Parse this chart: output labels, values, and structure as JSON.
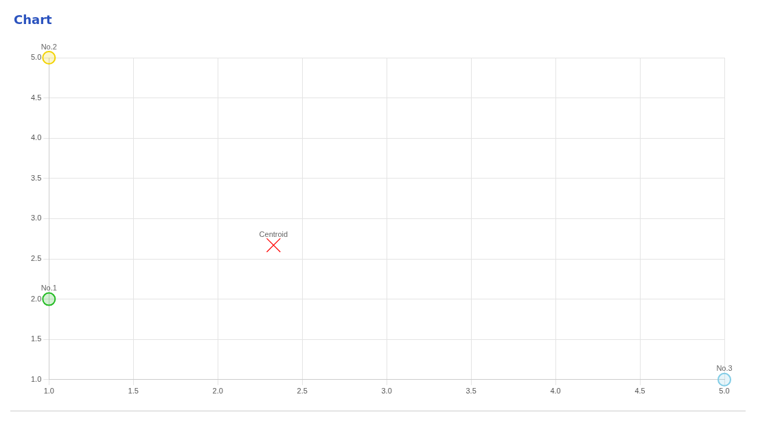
{
  "chart_data": {
    "type": "scatter",
    "title": "Chart",
    "xlim": [
      1,
      5
    ],
    "ylim": [
      1,
      5
    ],
    "xticks": [
      {
        "value": 1,
        "label": "1.0"
      },
      {
        "value": 1.5,
        "label": "1.5"
      },
      {
        "value": 2,
        "label": "2.0"
      },
      {
        "value": 2.5,
        "label": "2.5"
      },
      {
        "value": 3,
        "label": "3.0"
      },
      {
        "value": 3.5,
        "label": "3.5"
      },
      {
        "value": 4,
        "label": "4.0"
      },
      {
        "value": 4.5,
        "label": "4.5"
      },
      {
        "value": 5,
        "label": "5.0"
      }
    ],
    "yticks": [
      {
        "value": 1,
        "label": "1.0"
      },
      {
        "value": 1.5,
        "label": "1.5"
      },
      {
        "value": 2,
        "label": "2.0"
      },
      {
        "value": 2.5,
        "label": "2.5"
      },
      {
        "value": 3,
        "label": "3.0"
      },
      {
        "value": 3.5,
        "label": "3.5"
      },
      {
        "value": 4,
        "label": "4.0"
      },
      {
        "value": 4.5,
        "label": "4.5"
      },
      {
        "value": 5,
        "label": "5.0"
      }
    ],
    "grid": true,
    "legend": false,
    "series": [
      {
        "name": "No.1",
        "color": "#22bb22",
        "marker": "circle",
        "x": [
          1
        ],
        "values": [
          2
        ]
      },
      {
        "name": "No.2",
        "color": "#f2d200",
        "marker": "circle",
        "x": [
          1
        ],
        "values": [
          5
        ]
      },
      {
        "name": "No.3",
        "color": "#80cce6",
        "marker": "circle",
        "x": [
          5
        ],
        "values": [
          1
        ]
      },
      {
        "name": "Centroid",
        "color": "#ff0000",
        "marker": "cross",
        "x": [
          2.33
        ],
        "values": [
          2.67
        ]
      }
    ]
  }
}
